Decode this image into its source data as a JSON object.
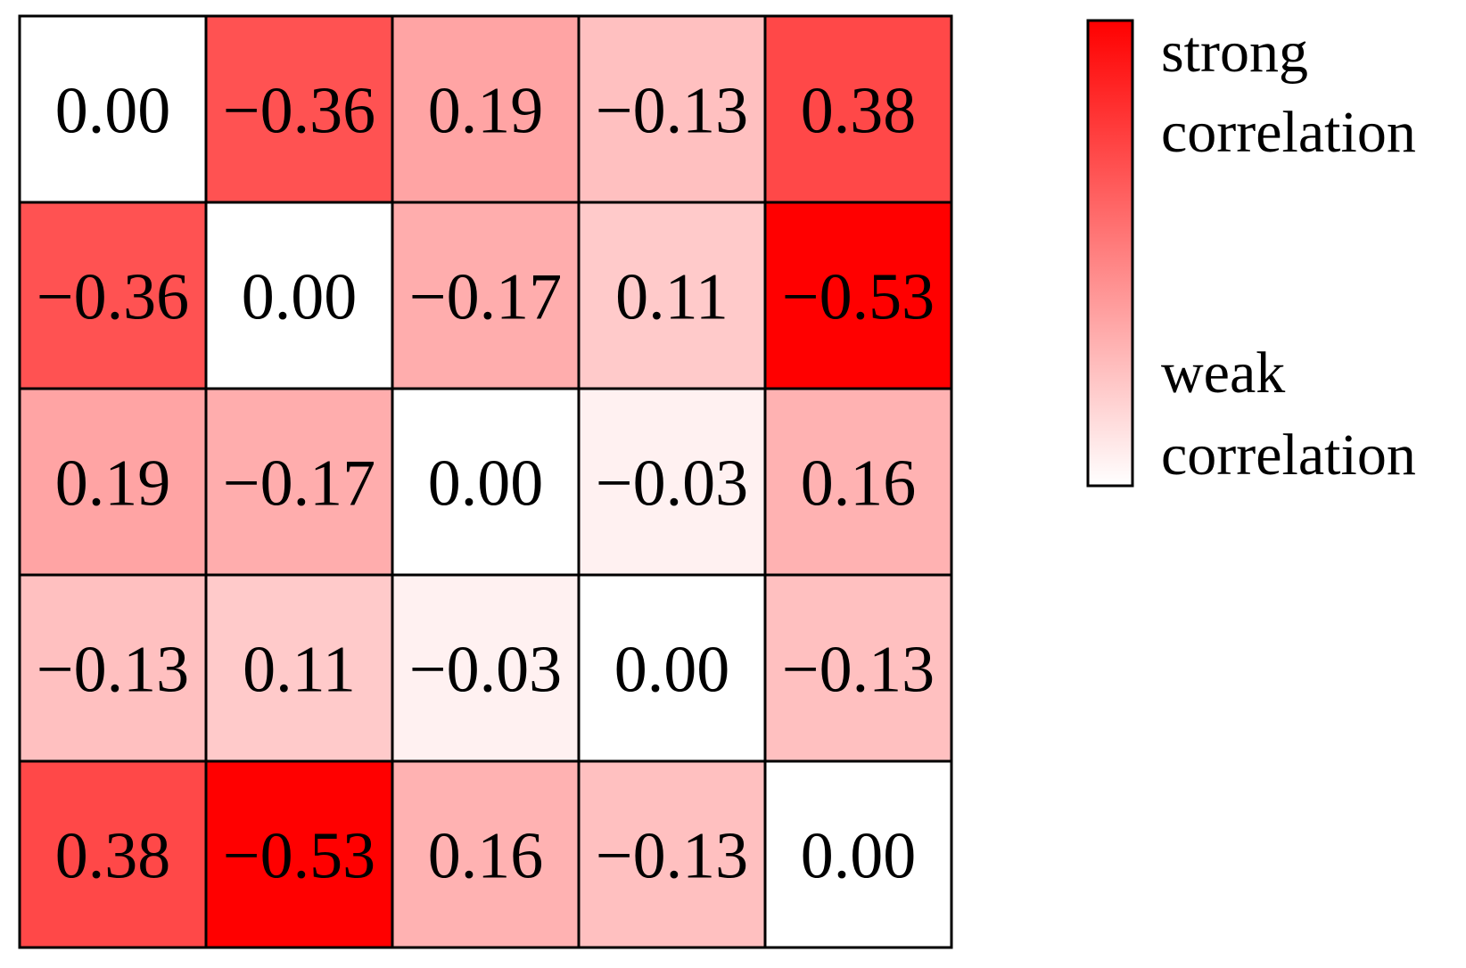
{
  "chart_data": {
    "type": "heatmap",
    "matrix": [
      [
        0.0,
        -0.36,
        0.19,
        -0.13,
        0.38
      ],
      [
        -0.36,
        0.0,
        -0.17,
        0.11,
        -0.53
      ],
      [
        0.19,
        -0.17,
        0.0,
        -0.03,
        0.16
      ],
      [
        -0.13,
        0.11,
        -0.03,
        0.0,
        -0.13
      ],
      [
        0.38,
        -0.53,
        0.16,
        -0.13,
        0.0
      ]
    ],
    "labels": [
      [
        "0.00",
        "−0.36",
        "0.19",
        "−0.13",
        "0.38"
      ],
      [
        "−0.36",
        "0.00",
        "−0.17",
        "0.11",
        "−0.53"
      ],
      [
        "0.19",
        "−0.17",
        "0.00",
        "−0.03",
        "0.16"
      ],
      [
        "−0.13",
        "0.11",
        "−0.03",
        "0.00",
        "−0.13"
      ],
      [
        "0.38",
        "−0.53",
        "0.16",
        "−0.13",
        "0.00"
      ]
    ],
    "color_scale": {
      "low_color": "#ffffff",
      "high_color": "#ff0000",
      "abs_max": 0.53
    },
    "legend": {
      "placement": "right",
      "high_label_line1": "strong",
      "high_label_line2": "correlation",
      "low_label_line1": "weak",
      "low_label_line2": "correlation"
    },
    "grid": true
  }
}
